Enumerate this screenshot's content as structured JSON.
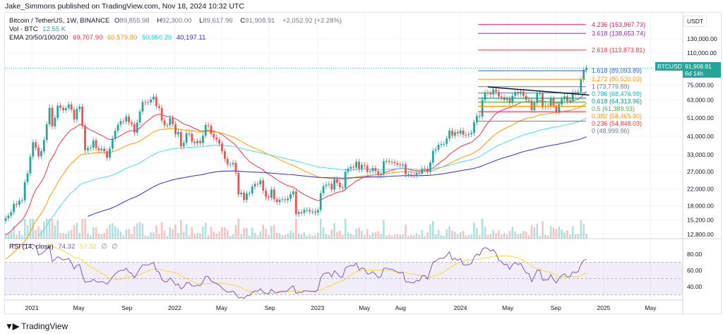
{
  "header": {
    "published": "Jake_Simmons published on TradingView.com, Nov 18, 2024 10:32 UTC"
  },
  "legend": {
    "symbol": "Bitcoin / TetherUS, 1W, BINANCE",
    "open_label": "O",
    "open": "89,855.98",
    "high_label": "H",
    "high": "92,300.00",
    "low_label": "L",
    "low": "89,617.96",
    "close_label": "C",
    "close": "91,908.91",
    "change": "+2,052.92 (+2.28%)",
    "vol_label": "Vol · BTC",
    "vol": "12.55 K",
    "ema_label": "EMA 20/50/100/200",
    "ema20": "69,707.90",
    "ema50": "60,579.80",
    "ema100": "50,850.29",
    "ema200": "40,197.11",
    "rsi_label": "RSI (14, close)",
    "rsi": "74.32",
    "rsi_ma": "57.32",
    "hidden1": "∅",
    "hidden2": "∅"
  },
  "price_axis": {
    "currency": "USDT",
    "ticks": [
      "130,000.00",
      "110,000.00",
      "75,000.00",
      "63,000.00",
      "51,000.00",
      "41,000.00",
      "33,000.00",
      "27,000.00",
      "22,000.00",
      "18,000.00",
      "15,200.00",
      "12,800.00"
    ],
    "current_symbol": "BTCUSDT",
    "current_price": "91,908.91",
    "countdown": "6d 14h"
  },
  "rsi_axis": {
    "ticks": [
      "80.00",
      "60.00",
      "40.00"
    ]
  },
  "colors": {
    "up": "#26a69a",
    "down": "#ef5350",
    "ema20": "#f23645",
    "ema50": "#ff9800",
    "ema100": "#4dd9ec",
    "ema200": "#2f2fd8",
    "rsi": "#7e57c2",
    "rsi_ma": "#f5d936"
  },
  "footer": {
    "brand": "TradingView"
  },
  "chart_data": {
    "type": "candlestick",
    "title": "Bitcoin / TetherUS, 1W, BINANCE",
    "y_scale": "log",
    "ylim": [
      12000,
      165000
    ],
    "start_week": "2020-10-26",
    "interval": "1W",
    "closes": [
      15.5,
      16.0,
      16.7,
      18.4,
      18.2,
      19.1,
      19.2,
      23.8,
      26.4,
      32.2,
      38.2,
      35.8,
      32.3,
      34.3,
      39.2,
      47.2,
      57.5,
      46.1,
      51.0,
      59.0,
      57.4,
      55.8,
      57.1,
      59.8,
      56.2,
      50.0,
      56.6,
      58.2,
      46.4,
      34.7,
      35.6,
      35.8,
      39.0,
      35.6,
      34.7,
      35.3,
      34.3,
      31.8,
      35.4,
      39.9,
      43.8,
      47.0,
      49.0,
      48.8,
      51.8,
      48.3,
      47.3,
      42.8,
      48.2,
      54.9,
      61.5,
      61.3,
      61.3,
      63.3,
      65.5,
      58.6,
      57.3,
      49.4,
      46.7,
      46.7,
      50.8,
      47.3,
      41.9,
      43.1,
      36.3,
      37.9,
      42.4,
      42.2,
      38.4,
      37.7,
      38.8,
      37.8,
      41.3,
      46.8,
      46.4,
      42.2,
      40.4,
      39.4,
      37.6,
      34.3,
      31.3,
      29.4,
      29.4,
      29.9,
      26.6,
      20.6,
      21.0,
      19.3,
      20.8,
      20.8,
      22.6,
      23.3,
      23.2,
      24.3,
      21.5,
      20.0,
      19.8,
      21.8,
      19.4,
      18.8,
      19.3,
      19.4,
      19.2,
      19.6,
      20.6,
      21.3,
      16.3,
      16.7,
      16.5,
      17.1,
      17.1,
      16.8,
      16.8,
      16.6,
      17.1,
      20.9,
      22.7,
      23.1,
      23.3,
      21.8,
      24.6,
      23.6,
      22.4,
      22.2,
      26.9,
      27.9,
      28.5,
      28.3,
      30.3,
      27.8,
      29.2,
      28.9,
      26.9,
      27.1,
      28.1,
      27.1,
      25.8,
      26.3,
      30.5,
      30.6,
      30.2,
      30.2,
      29.8,
      29.3,
      29.0,
      29.4,
      26.1,
      26.1,
      25.9,
      25.8,
      26.5,
      26.3,
      27.9,
      27.9,
      26.9,
      30.0,
      34.5,
      35.0,
      37.1,
      37.4,
      37.4,
      39.9,
      43.8,
      41.3,
      43.0,
      42.3,
      43.9,
      41.7,
      41.6,
      42.0,
      42.6,
      48.3,
      52.1,
      51.7,
      63.1,
      68.9,
      68.4,
      67.2,
      71.3,
      69.4,
      65.6,
      64.9,
      63.1,
      63.9,
      60.8,
      66.3,
      69.2,
      67.8,
      69.6,
      66.2,
      63.2,
      62.7,
      55.9,
      60.8,
      68.2,
      68.2,
      58.1,
      58.7,
      58.4,
      64.2,
      58.9,
      54.8,
      59.9,
      63.6,
      65.8,
      62.1,
      62.8,
      69.0,
      68.0,
      69.4,
      80.4,
      89.9,
      91.908
    ],
    "close_unit": "thousand USDT",
    "fib_levels": [
      {
        "ratio": "4.236",
        "price": "153,967.73",
        "value": 153967.73,
        "color": "#e91e63"
      },
      {
        "ratio": "3.618",
        "price": "138,653.74",
        "value": 138653.74,
        "color": "#9c27b0"
      },
      {
        "ratio": "2.618",
        "price": "113,873.81",
        "value": 113873.81,
        "color": "#f23645"
      },
      {
        "ratio": "1.618",
        "price": "89,093.89",
        "value": 89093.89,
        "color": "#2962ff"
      },
      {
        "ratio": "1.272",
        "price": "80,520.03",
        "value": 80520.03,
        "color": "#ff9800"
      },
      {
        "ratio": "1",
        "price": "73,779.89",
        "value": 73779.89,
        "color": "#787b86"
      },
      {
        "ratio": "0.786",
        "price": "68,476.99",
        "value": 68476.99,
        "color": "#00bcd4"
      },
      {
        "ratio": "0.618",
        "price": "64,313.96",
        "value": 64313.96,
        "color": "#089981"
      },
      {
        "ratio": "0.5",
        "price": "61,389.93",
        "value": 61389.93,
        "color": "#4caf50"
      },
      {
        "ratio": "0.382",
        "price": "58,465.90",
        "value": 58465.9,
        "color": "#ff9800"
      },
      {
        "ratio": "0.236",
        "price": "54,848.03",
        "value": 54848.03,
        "color": "#f23645"
      },
      {
        "ratio": "0",
        "price": "48,999.96",
        "value": 48999.96,
        "color": "#787b86"
      }
    ],
    "trendline": {
      "from": {
        "date": "2024-03-11",
        "price": 73500
      },
      "to": {
        "date": "2024-11-25",
        "price": 66800
      }
    },
    "x_labels": [
      {
        "label": "2021",
        "date": "2021-01-01"
      },
      {
        "label": "May",
        "date": "2021-05-01"
      },
      {
        "label": "Sep",
        "date": "2021-09-01"
      },
      {
        "label": "2022",
        "date": "2022-01-01"
      },
      {
        "label": "May",
        "date": "2022-05-01"
      },
      {
        "label": "Sep",
        "date": "2022-09-01"
      },
      {
        "label": "2023",
        "date": "2023-01-01"
      },
      {
        "label": "May",
        "date": "2023-05-01"
      },
      {
        "label": "Aug",
        "date": "2023-08-01"
      },
      {
        "label": "2024",
        "date": "2024-01-01"
      },
      {
        "label": "May",
        "date": "2024-05-01"
      },
      {
        "label": "Sep",
        "date": "2024-09-01"
      },
      {
        "label": "2025",
        "date": "2025-01-01"
      },
      {
        "label": "May",
        "date": "2025-05-01"
      }
    ],
    "rsi": {
      "period": 14,
      "levels": [
        70,
        50,
        30
      ],
      "ylim": [
        20,
        90
      ]
    }
  }
}
